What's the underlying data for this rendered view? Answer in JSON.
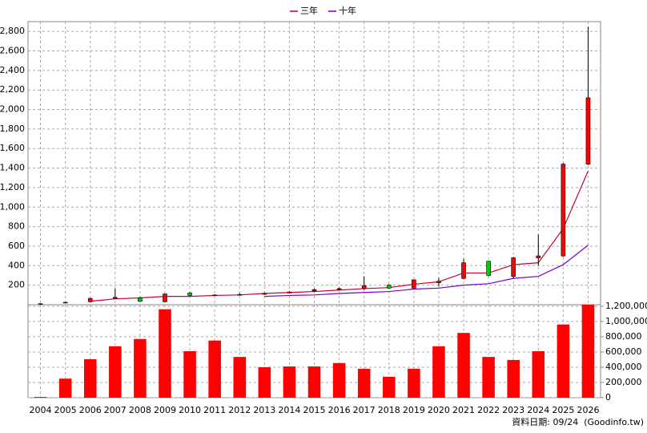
{
  "chart_data": {
    "type": "candlestick",
    "categories": [
      "2004",
      "2005",
      "2006",
      "2007",
      "2008",
      "2009",
      "2010",
      "2011",
      "2012",
      "2013",
      "2014",
      "2015",
      "2016",
      "2017",
      "2018",
      "2019",
      "2020",
      "2021",
      "2022",
      "2023",
      "2024",
      "2025",
      "2026"
    ],
    "open": [
      8,
      22,
      30,
      65,
      70,
      30,
      120,
      95,
      100,
      108,
      120,
      140,
      155,
      165,
      200,
      170,
      225,
      270,
      445,
      290,
      480,
      500,
      1440
    ],
    "high": [
      12,
      28,
      70,
      165,
      80,
      115,
      130,
      105,
      120,
      125,
      140,
      165,
      175,
      290,
      210,
      260,
      275,
      470,
      450,
      490,
      720,
      1450,
      2850
    ],
    "low": [
      6,
      20,
      28,
      60,
      30,
      28,
      90,
      90,
      95,
      100,
      115,
      135,
      150,
      150,
      160,
      160,
      190,
      260,
      290,
      270,
      400,
      490,
      1430
    ],
    "close": [
      11,
      25,
      65,
      75,
      35,
      110,
      95,
      100,
      105,
      115,
      130,
      155,
      165,
      195,
      170,
      255,
      240,
      430,
      300,
      480,
      500,
      1440,
      2120
    ],
    "up_color": "#ff0000",
    "down_color": "#00cc00",
    "series": [
      {
        "name": "三年",
        "color": "#cc0033",
        "values": [
          null,
          null,
          35,
          60,
          70,
          85,
          85,
          95,
          100,
          115,
          125,
          135,
          150,
          165,
          175,
          210,
          235,
          325,
          325,
          410,
          430,
          780,
          1370
        ]
      },
      {
        "name": "十年",
        "color": "#7700cc",
        "values": [
          null,
          null,
          null,
          null,
          null,
          null,
          null,
          null,
          null,
          85,
          95,
          100,
          115,
          125,
          135,
          160,
          170,
          200,
          215,
          270,
          290,
          410,
          610
        ]
      }
    ],
    "ylim": [
      0,
      2900
    ],
    "yticks": [
      200,
      400,
      600,
      800,
      {
        "value": 1000,
        "label": "1,000"
      },
      {
        "value": 1200,
        "label": "1,200"
      },
      {
        "value": 1400,
        "label": "1,400"
      },
      {
        "value": 1600,
        "label": "1,600"
      },
      {
        "value": 1800,
        "label": "1,800"
      },
      {
        "value": 2000,
        "label": "2,000"
      },
      {
        "value": 2200,
        "label": "2,200"
      },
      {
        "value": 2400,
        "label": "2,400"
      },
      {
        "value": 2600,
        "label": "2,600"
      },
      {
        "value": 2800,
        "label": "2,800"
      }
    ],
    "grid": true,
    "legend": "top",
    "volume": {
      "values": [
        10000,
        250000,
        505000,
        675000,
        770000,
        1160000,
        610000,
        750000,
        535000,
        400000,
        410000,
        410000,
        455000,
        380000,
        275000,
        380000,
        675000,
        850000,
        535000,
        495000,
        610000,
        960000,
        1220000
      ],
      "color": "#ff0000",
      "ylim": [
        0,
        1220000
      ],
      "yticks": [
        0,
        {
          "value": 200000,
          "label": "200,000"
        },
        {
          "value": 400000,
          "label": "400,000"
        },
        {
          "value": 600000,
          "label": "600,000"
        },
        {
          "value": 800000,
          "label": "800,000"
        },
        {
          "value": 1000000,
          "label": "1,000,000"
        },
        {
          "value": 1200000,
          "label": "1,200,000"
        }
      ]
    },
    "note": "資料日期: 09/24  (Goodinfo.tw)"
  }
}
